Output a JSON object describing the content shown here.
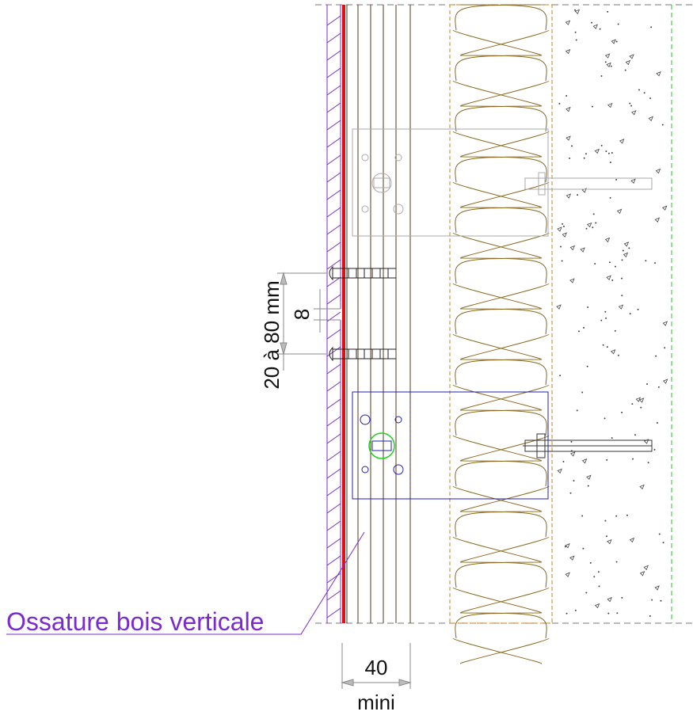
{
  "labels": {
    "callout": "Ossature bois verticale",
    "gap_range": "20 à 80 mm",
    "gap_joint": "8",
    "batten_width": "40",
    "batten_width_note": "mini"
  }
}
